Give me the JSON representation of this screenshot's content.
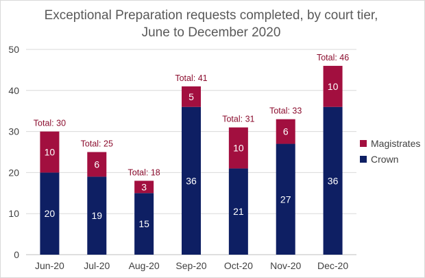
{
  "chart_data": {
    "type": "bar",
    "stacked": true,
    "title": "Exceptional Preparation requests completed, by court tier,",
    "subtitle": "June to December 2020",
    "categories": [
      "Jun-20",
      "Jul-20",
      "Aug-20",
      "Sep-20",
      "Oct-20",
      "Nov-20",
      "Dec-20"
    ],
    "series": [
      {
        "name": "Crown",
        "values": [
          20,
          19,
          15,
          36,
          21,
          27,
          36
        ],
        "color": "#0e1f63"
      },
      {
        "name": "Magistrates",
        "values": [
          10,
          6,
          3,
          5,
          10,
          6,
          10
        ],
        "color": "#a20f3f"
      }
    ],
    "totals": [
      "Total: 30",
      "Total: 25",
      "Total: 18",
      "Total: 41",
      "Total: 31",
      "Total: 33",
      "Total: 46"
    ],
    "ylim": [
      0,
      50
    ],
    "yticks": [
      0,
      10,
      20,
      30,
      40,
      50
    ],
    "xlabel": "",
    "ylabel": "",
    "grid": true,
    "legend_position": "right",
    "legend_order": [
      "Magistrates",
      "Crown"
    ]
  }
}
